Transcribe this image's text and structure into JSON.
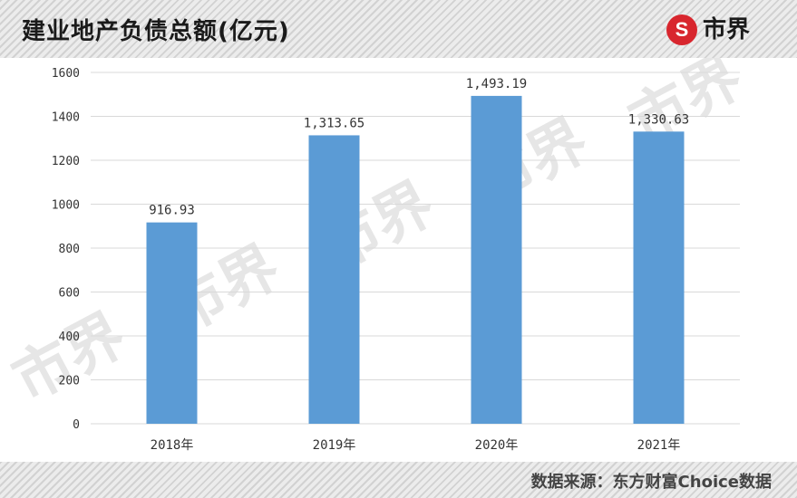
{
  "header": {
    "title": "建业地产负债总额(亿元)",
    "logo_symbol": "S",
    "logo_text": "市界"
  },
  "watermark_text": "市界",
  "footer": {
    "source": "数据来源：东方财富Choice数据"
  },
  "colors": {
    "bar": "#5b9bd5",
    "grid": "#d9d9d9",
    "axis_text": "#333333",
    "logo_red": "#d8262e"
  },
  "chart_data": {
    "type": "bar",
    "categories": [
      "2018年",
      "2019年",
      "2020年",
      "2021年"
    ],
    "values": [
      916.93,
      1313.65,
      1493.19,
      1330.63
    ],
    "value_labels": [
      "916.93",
      "1,313.65",
      "1,493.19",
      "1,330.63"
    ],
    "title": "建业地产负债总额(亿元)",
    "xlabel": "",
    "ylabel": "",
    "ylim": [
      0,
      1600
    ],
    "yticks": [
      0,
      200,
      400,
      600,
      800,
      1000,
      1200,
      1400,
      1600
    ],
    "grid": true,
    "legend": "none"
  }
}
